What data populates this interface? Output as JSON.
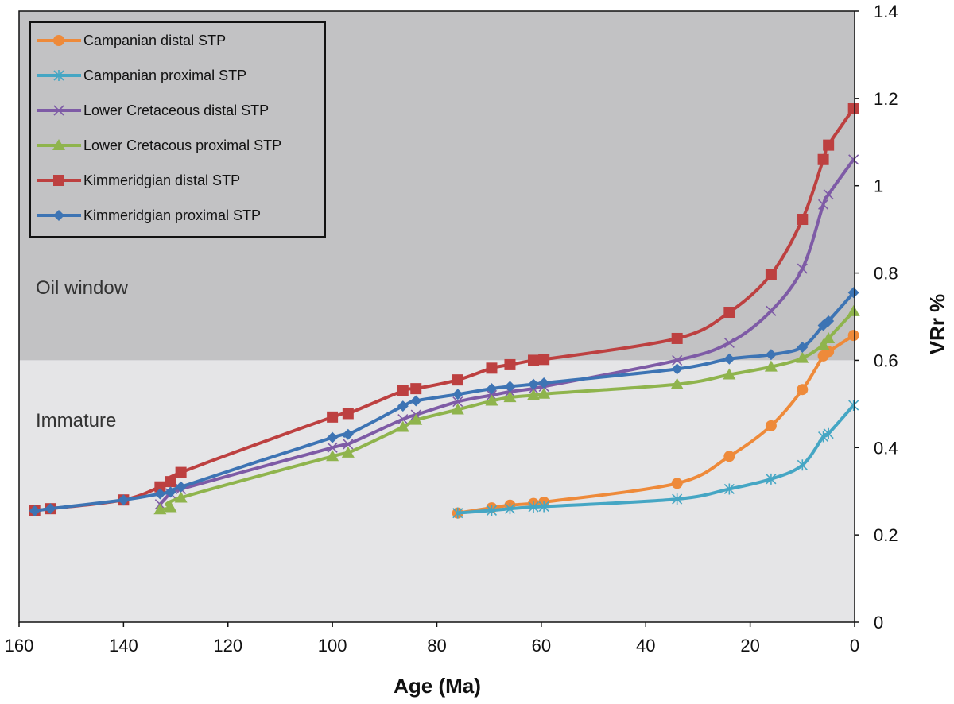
{
  "chart_data": {
    "type": "line",
    "title": "",
    "xlabel": "Age (Ma)",
    "ylabel": "VRr %",
    "xlim": [
      160,
      0
    ],
    "ylim": [
      0,
      1.4
    ],
    "x_ticks": [
      "160",
      "140",
      "120",
      "100",
      "80",
      "60",
      "40",
      "20",
      "0"
    ],
    "x_tick_values": [
      160,
      140,
      120,
      100,
      80,
      60,
      40,
      20,
      0
    ],
    "y_ticks": [
      "0",
      "0.2",
      "0.4",
      "0.6",
      "0.8",
      "1",
      "1.2",
      "1.4"
    ],
    "y_tick_values": [
      0,
      0.2,
      0.4,
      0.6,
      0.8,
      1,
      1.2,
      1.4
    ],
    "zones": [
      {
        "name": "oil-window",
        "label": "Oil window",
        "from": 0.6,
        "to": 1.4,
        "color": "#c2c2c4"
      },
      {
        "name": "immature",
        "label": "Immature",
        "from": 0,
        "to": 0.6,
        "color": "#e5e5e7"
      }
    ],
    "legend_position": "top-left",
    "series": [
      {
        "name": "Campanian distal STP",
        "color": "#ee8a3a",
        "marker": "circle",
        "x": [
          76,
          69.5,
          66,
          61.5,
          59.5,
          34,
          24,
          16,
          10,
          6,
          5,
          0.2
        ],
        "y": [
          0.25,
          0.262,
          0.268,
          0.272,
          0.275,
          0.318,
          0.38,
          0.45,
          0.533,
          0.61,
          0.62,
          0.657
        ]
      },
      {
        "name": "Campanian proximal STP",
        "color": "#45a6c4",
        "marker": "asterisk",
        "x": [
          76,
          69.5,
          66,
          61.5,
          59.5,
          34,
          24,
          16,
          10,
          6,
          5,
          0.2
        ],
        "y": [
          0.25,
          0.256,
          0.26,
          0.264,
          0.265,
          0.282,
          0.305,
          0.328,
          0.36,
          0.425,
          0.432,
          0.497
        ]
      },
      {
        "name": "Lower Cretaceous distal STP",
        "color": "#7e5ba6",
        "marker": "x",
        "x": [
          133,
          131,
          129,
          100,
          97,
          86.5,
          84,
          76,
          69.5,
          66,
          61.5,
          59.5,
          34,
          24,
          16,
          10,
          6,
          5,
          0.2
        ],
        "y": [
          0.27,
          0.295,
          0.305,
          0.4,
          0.408,
          0.465,
          0.475,
          0.505,
          0.52,
          0.528,
          0.535,
          0.54,
          0.6,
          0.64,
          0.713,
          0.81,
          0.957,
          0.98,
          1.06
        ]
      },
      {
        "name": "Lower Cretacous proximal STP",
        "color": "#8fb44d",
        "marker": "triangle",
        "x": [
          133,
          131,
          129,
          100,
          97,
          86.5,
          84,
          76,
          69.5,
          66,
          61.5,
          59.5,
          34,
          24,
          16,
          10,
          6,
          5,
          0.2
        ],
        "y": [
          0.258,
          0.263,
          0.285,
          0.38,
          0.388,
          0.447,
          0.463,
          0.487,
          0.507,
          0.515,
          0.52,
          0.523,
          0.545,
          0.567,
          0.585,
          0.605,
          0.635,
          0.65,
          0.712
        ]
      },
      {
        "name": "Kimmeridgian distal STP",
        "color": "#bd4040",
        "marker": "square",
        "x": [
          157,
          154,
          140,
          133,
          131,
          129,
          100,
          97,
          86.5,
          84,
          76,
          69.5,
          66,
          61.5,
          59.5,
          34,
          24,
          16,
          10,
          6,
          5,
          0.2
        ],
        "y": [
          0.255,
          0.26,
          0.28,
          0.31,
          0.322,
          0.343,
          0.47,
          0.478,
          0.53,
          0.535,
          0.555,
          0.582,
          0.59,
          0.6,
          0.602,
          0.65,
          0.71,
          0.797,
          0.923,
          1.06,
          1.093,
          1.177
        ]
      },
      {
        "name": "Kimmeridgian proximal STP",
        "color": "#3d74b4",
        "marker": "diamond",
        "x": [
          157,
          154,
          140,
          133,
          131,
          129,
          100,
          97,
          86.5,
          84,
          76,
          69.5,
          66,
          61.5,
          59.5,
          34,
          24,
          16,
          10,
          6,
          5,
          0.2
        ],
        "y": [
          0.255,
          0.26,
          0.28,
          0.294,
          0.298,
          0.31,
          0.423,
          0.43,
          0.495,
          0.507,
          0.522,
          0.535,
          0.54,
          0.545,
          0.548,
          0.58,
          0.603,
          0.613,
          0.63,
          0.68,
          0.69,
          0.755
        ]
      }
    ]
  }
}
